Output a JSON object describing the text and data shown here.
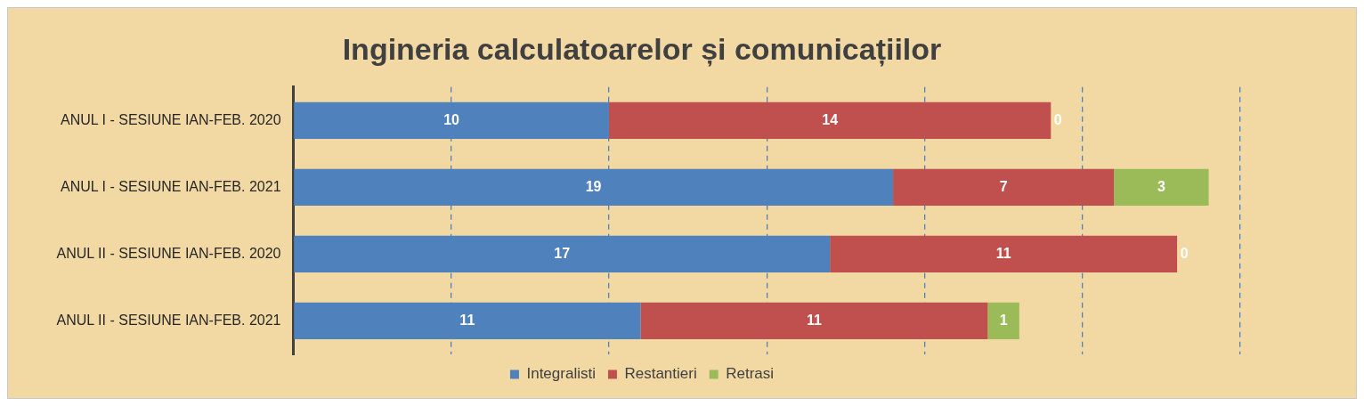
{
  "chart_data": {
    "type": "bar",
    "orientation": "horizontal",
    "stacked": true,
    "title": "Ingineria calculatoarelor și comunicațiilor",
    "categories": [
      "ANUL I - SESIUNE IAN-FEB. 2020",
      "ANUL I - SESIUNE IAN-FEB. 2021",
      "ANUL II - SESIUNE IAN-FEB. 2020",
      "ANUL II - SESIUNE IAN-FEB. 2021"
    ],
    "series": [
      {
        "name": "Integralisti",
        "color": "#4f81bd",
        "values": [
          10,
          19,
          17,
          11
        ]
      },
      {
        "name": "Restantieri",
        "color": "#c0504d",
        "values": [
          14,
          7,
          11,
          11
        ]
      },
      {
        "name": "Retrasi",
        "color": "#9bbb59",
        "values": [
          0,
          3,
          0,
          1
        ]
      }
    ],
    "xlim": [
      0,
      30
    ],
    "xticks": [
      {
        "value": 0,
        "label": null
      },
      {
        "value": 5,
        "label": null
      },
      {
        "value": 10,
        "label": null
      },
      {
        "value": 15,
        "label": null
      },
      {
        "value": 20,
        "label": null
      },
      {
        "value": 25,
        "label": null
      },
      {
        "value": 30,
        "label": null
      }
    ],
    "grid": "x",
    "legend": "bottom",
    "tick_labels": "y",
    "data_labels": true
  }
}
